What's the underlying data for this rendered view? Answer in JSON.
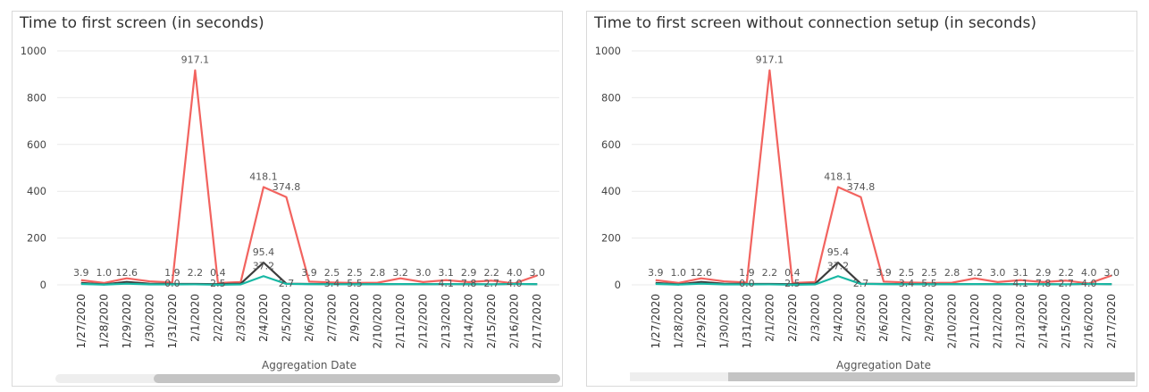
{
  "colors": {
    "red": "#f2635f",
    "black": "#3c3c3c",
    "teal": "#18b8a4",
    "grid": "#e9e9e9"
  },
  "chart_data": [
    {
      "type": "line",
      "title": "Time to first screen (in seconds)",
      "xlabel": "Aggregation Date",
      "ylabel": "",
      "ylim": [
        0,
        1000
      ],
      "yticks": [
        0,
        200,
        400,
        600,
        800,
        1000
      ],
      "grid": true,
      "categories": [
        "1/27/2020",
        "1/28/2020",
        "1/29/2020",
        "1/30/2020",
        "1/31/2020",
        "2/1/2020",
        "2/2/2020",
        "2/3/2020",
        "2/4/2020",
        "2/5/2020",
        "2/6/2020",
        "2/7/2020",
        "2/9/2020",
        "2/10/2020",
        "2/11/2020",
        "2/12/2020",
        "2/13/2020",
        "2/14/2020",
        "2/15/2020",
        "2/16/2020",
        "2/17/2020"
      ],
      "series": [
        {
          "color_key": "red",
          "values": [
            20,
            8,
            28,
            15,
            10,
            917.1,
            8,
            12,
            418.1,
            374.8,
            14,
            10,
            8,
            9,
            28,
            12,
            20,
            12,
            18,
            6,
            40
          ]
        },
        {
          "color_key": "black",
          "values": [
            8,
            2,
            12.6,
            5,
            4,
            4,
            3,
            5,
            95.4,
            5,
            3.9,
            3,
            3,
            2.8,
            3.2,
            3,
            3.1,
            2.9,
            2.2,
            4,
            3
          ]
        },
        {
          "color_key": "teal",
          "values": [
            3.9,
            1,
            5,
            2,
            1.9,
            2.2,
            0.4,
            2,
            37.2,
            4,
            3,
            2.5,
            2.5,
            2.8,
            3.2,
            3,
            3.1,
            2.9,
            2.2,
            4,
            3
          ]
        }
      ],
      "data_labels": [
        {
          "i": 0,
          "text": "3.9"
        },
        {
          "i": 1,
          "text": "1.0"
        },
        {
          "i": 2,
          "text": "12.6"
        },
        {
          "i": 4,
          "text": "1.9"
        },
        {
          "i": 4,
          "text": "0.0",
          "low": true
        },
        {
          "i": 5,
          "text": "917.1",
          "top": 917.1
        },
        {
          "i": 5,
          "text": "2.2"
        },
        {
          "i": 6,
          "text": "0.4"
        },
        {
          "i": 6,
          "text": "2.5",
          "low": true
        },
        {
          "i": 8,
          "text": "418.1",
          "top": 418.1
        },
        {
          "i": 8,
          "text": "95.4",
          "top": 95.4
        },
        {
          "i": 8,
          "text": "37.2",
          "top": 37.2
        },
        {
          "i": 9,
          "text": "374.8",
          "top": 374.8
        },
        {
          "i": 9,
          "text": "2.7",
          "low": true
        },
        {
          "i": 10,
          "text": "3.9"
        },
        {
          "i": 11,
          "text": "2.5"
        },
        {
          "i": 11,
          "text": "3.4",
          "low": true
        },
        {
          "i": 12,
          "text": "2.5"
        },
        {
          "i": 12,
          "text": "5.5",
          "low": true
        },
        {
          "i": 13,
          "text": "2.8"
        },
        {
          "i": 14,
          "text": "3.2"
        },
        {
          "i": 15,
          "text": "3.0"
        },
        {
          "i": 16,
          "text": "3.1"
        },
        {
          "i": 16,
          "text": "4.1",
          "low": true
        },
        {
          "i": 17,
          "text": "2.9"
        },
        {
          "i": 17,
          "text": "7.8",
          "low": true
        },
        {
          "i": 18,
          "text": "2.2"
        },
        {
          "i": 18,
          "text": "2.7",
          "low": true
        },
        {
          "i": 19,
          "text": "4.0"
        },
        {
          "i": 19,
          "text": "4.0",
          "low": true
        },
        {
          "i": 20,
          "text": "3.0"
        }
      ],
      "scrollbar": {
        "thumb_start": 0.195,
        "thumb_end": 1.0
      }
    },
    {
      "type": "line",
      "title": "Time to first screen without connection setup (in seconds)",
      "xlabel": "Aggregation Date",
      "ylabel": "",
      "ylim": [
        0,
        1000
      ],
      "yticks": [
        0,
        200,
        400,
        600,
        800,
        1000
      ],
      "grid": true,
      "categories": [
        "1/27/2020",
        "1/28/2020",
        "1/29/2020",
        "1/30/2020",
        "1/31/2020",
        "2/1/2020",
        "2/2/2020",
        "2/3/2020",
        "2/4/2020",
        "2/5/2020",
        "2/6/2020",
        "2/7/2020",
        "2/9/2020",
        "2/10/2020",
        "2/11/2020",
        "2/12/2020",
        "2/13/2020",
        "2/14/2020",
        "2/15/2020",
        "2/16/2020",
        "2/17/2020"
      ],
      "series": [
        {
          "color_key": "red",
          "values": [
            20,
            8,
            28,
            15,
            10,
            917.1,
            8,
            12,
            418.1,
            374.8,
            14,
            10,
            8,
            9,
            28,
            12,
            20,
            12,
            18,
            6,
            40
          ]
        },
        {
          "color_key": "black",
          "values": [
            8,
            2,
            12.6,
            5,
            4,
            4,
            3,
            5,
            95.4,
            5,
            3.9,
            3,
            3,
            2.8,
            3.2,
            3,
            3.1,
            2.9,
            2.2,
            4,
            3
          ]
        },
        {
          "color_key": "teal",
          "values": [
            3.9,
            1,
            5,
            2,
            1.9,
            2.2,
            0.4,
            2,
            37.2,
            4,
            3,
            2.5,
            2.5,
            2.8,
            3.2,
            3,
            3.1,
            2.9,
            2.2,
            4,
            3
          ]
        }
      ],
      "data_labels": [
        {
          "i": 0,
          "text": "3.9"
        },
        {
          "i": 1,
          "text": "1.0"
        },
        {
          "i": 2,
          "text": "12.6"
        },
        {
          "i": 4,
          "text": "1.9"
        },
        {
          "i": 4,
          "text": "0.0",
          "low": true
        },
        {
          "i": 5,
          "text": "917.1",
          "top": 917.1
        },
        {
          "i": 5,
          "text": "2.2"
        },
        {
          "i": 6,
          "text": "0.4"
        },
        {
          "i": 6,
          "text": "2.5",
          "low": true
        },
        {
          "i": 8,
          "text": "418.1",
          "top": 418.1
        },
        {
          "i": 8,
          "text": "95.4",
          "top": 95.4
        },
        {
          "i": 8,
          "text": "37.2",
          "top": 37.2
        },
        {
          "i": 9,
          "text": "374.8",
          "top": 374.8
        },
        {
          "i": 9,
          "text": "2.7",
          "low": true
        },
        {
          "i": 10,
          "text": "3.9"
        },
        {
          "i": 11,
          "text": "2.5"
        },
        {
          "i": 11,
          "text": "3.4",
          "low": true
        },
        {
          "i": 12,
          "text": "2.5"
        },
        {
          "i": 12,
          "text": "5.5",
          "low": true
        },
        {
          "i": 13,
          "text": "2.8"
        },
        {
          "i": 14,
          "text": "3.2"
        },
        {
          "i": 15,
          "text": "3.0"
        },
        {
          "i": 16,
          "text": "3.1"
        },
        {
          "i": 16,
          "text": "4.1",
          "low": true
        },
        {
          "i": 17,
          "text": "2.9"
        },
        {
          "i": 17,
          "text": "7.8",
          "low": true
        },
        {
          "i": 18,
          "text": "2.2"
        },
        {
          "i": 18,
          "text": "2.7",
          "low": true
        },
        {
          "i": 19,
          "text": "4.0"
        },
        {
          "i": 19,
          "text": "4.0",
          "low": true
        },
        {
          "i": 20,
          "text": "3.0"
        }
      ],
      "scrollbar": {
        "thumb_start": 0.195,
        "thumb_end": 1.0
      }
    }
  ]
}
